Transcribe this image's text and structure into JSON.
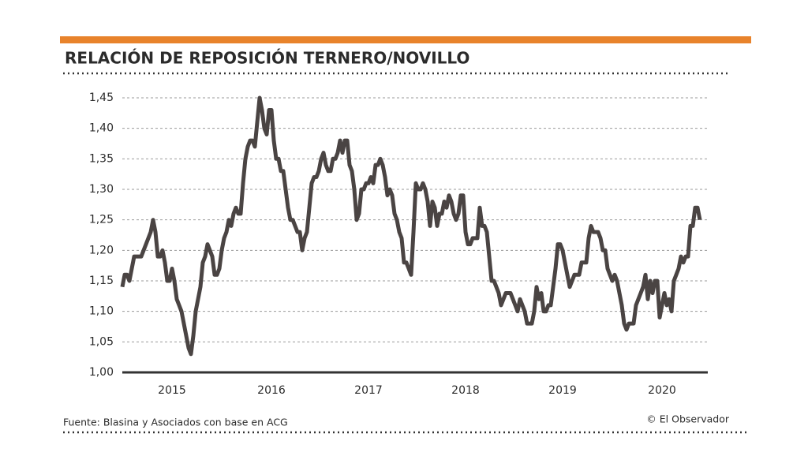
{
  "chart_data": {
    "type": "line",
    "title": "RELACIÓN DE REPOSICIÓN TERNERO/NOVILLO",
    "source": "Fuente: Blasina y Asociados con base en ACG",
    "credit": "© El Observador",
    "color": "#4a4443",
    "grid": true,
    "ylim": [
      1.0,
      1.45
    ],
    "yticks": [
      {
        "value": 1.0,
        "label": "1,00"
      },
      {
        "value": 1.05,
        "label": "1,05"
      },
      {
        "value": 1.1,
        "label": "1,10"
      },
      {
        "value": 1.15,
        "label": "1,15"
      },
      {
        "value": 1.2,
        "label": "1,20"
      },
      {
        "value": 1.25,
        "label": "1,25"
      },
      {
        "value": 1.3,
        "label": "1,30"
      },
      {
        "value": 1.35,
        "label": "1,35"
      },
      {
        "value": 1.4,
        "label": "1,40"
      },
      {
        "value": 1.45,
        "label": "1,45"
      }
    ],
    "categories": [
      null,
      null,
      null,
      null,
      null,
      null,
      null,
      null,
      null,
      null,
      null,
      null,
      null,
      null,
      null,
      null,
      null,
      null,
      null,
      null,
      null,
      "2015",
      null,
      null,
      null,
      null,
      null,
      null,
      null,
      null,
      null,
      null,
      null,
      null,
      null,
      null,
      null,
      null,
      null,
      null,
      null,
      null,
      null,
      null,
      null,
      null,
      null,
      null,
      null,
      null,
      null,
      null,
      null,
      null,
      null,
      null,
      null,
      null,
      null,
      null,
      null,
      null,
      null,
      "2016",
      null,
      null,
      null,
      null,
      null,
      null,
      null,
      null,
      null,
      null,
      null,
      null,
      null,
      null,
      null,
      null,
      null,
      null,
      null,
      null,
      null,
      null,
      null,
      null,
      null,
      null,
      null,
      null,
      null,
      null,
      null,
      null,
      null,
      null,
      null,
      null,
      null,
      null,
      null,
      null,
      "2017",
      null,
      null,
      null,
      null,
      null,
      null,
      null,
      null,
      null,
      null,
      null,
      null,
      null,
      null,
      null,
      null,
      null,
      null,
      null,
      null,
      null,
      null,
      null,
      null,
      null,
      null,
      null,
      null,
      null,
      null,
      null,
      null,
      null,
      null,
      null,
      null,
      null,
      null,
      null,
      null,
      "2018",
      null,
      null,
      null,
      null,
      null,
      null,
      null,
      null,
      null,
      null,
      null,
      null,
      null,
      null,
      null,
      null,
      null,
      null,
      null,
      null,
      null,
      null,
      null,
      null,
      null,
      null,
      null,
      null,
      null,
      null,
      null,
      null,
      null,
      null,
      null,
      null,
      null,
      null,
      null,
      null,
      "2019",
      null,
      null,
      null,
      null,
      null,
      null,
      null,
      null,
      null,
      null,
      null,
      null,
      null,
      null,
      null,
      null,
      null,
      null,
      null,
      null,
      null,
      null,
      null,
      null,
      null,
      null,
      null,
      null,
      null,
      null,
      null,
      null,
      null,
      null,
      null,
      null,
      null,
      null,
      null,
      null,
      null,
      "2020",
      null,
      null,
      null,
      null,
      null,
      null,
      null,
      null,
      null,
      null,
      null,
      null,
      null,
      null,
      null,
      null
    ],
    "values": [
      1.14,
      1.16,
      1.16,
      1.15,
      1.17,
      1.19,
      1.19,
      1.19,
      1.19,
      1.2,
      1.21,
      1.22,
      1.23,
      1.25,
      1.23,
      1.19,
      1.19,
      1.2,
      1.18,
      1.15,
      1.15,
      1.17,
      1.15,
      1.12,
      1.11,
      1.1,
      1.08,
      1.06,
      1.04,
      1.03,
      1.06,
      1.1,
      1.12,
      1.14,
      1.18,
      1.19,
      1.21,
      1.2,
      1.19,
      1.16,
      1.16,
      1.17,
      1.2,
      1.22,
      1.23,
      1.25,
      1.24,
      1.26,
      1.27,
      1.26,
      1.26,
      1.31,
      1.35,
      1.37,
      1.38,
      1.38,
      1.37,
      1.41,
      1.45,
      1.43,
      1.4,
      1.39,
      1.43,
      1.43,
      1.38,
      1.35,
      1.35,
      1.33,
      1.33,
      1.3,
      1.27,
      1.25,
      1.25,
      1.24,
      1.23,
      1.23,
      1.2,
      1.22,
      1.23,
      1.27,
      1.31,
      1.32,
      1.32,
      1.33,
      1.35,
      1.36,
      1.34,
      1.33,
      1.33,
      1.35,
      1.35,
      1.36,
      1.38,
      1.36,
      1.38,
      1.38,
      1.34,
      1.33,
      1.3,
      1.25,
      1.26,
      1.3,
      1.3,
      1.31,
      1.31,
      1.32,
      1.31,
      1.34,
      1.34,
      1.35,
      1.34,
      1.32,
      1.29,
      1.3,
      1.29,
      1.26,
      1.25,
      1.23,
      1.22,
      1.18,
      1.18,
      1.17,
      1.16,
      1.23,
      1.31,
      1.3,
      1.3,
      1.31,
      1.3,
      1.28,
      1.24,
      1.28,
      1.27,
      1.24,
      1.26,
      1.26,
      1.28,
      1.27,
      1.29,
      1.28,
      1.26,
      1.25,
      1.26,
      1.29,
      1.29,
      1.23,
      1.21,
      1.21,
      1.22,
      1.22,
      1.22,
      1.27,
      1.24,
      1.24,
      1.23,
      1.19,
      1.15,
      1.15,
      1.14,
      1.13,
      1.11,
      1.12,
      1.13,
      1.13,
      1.13,
      1.12,
      1.11,
      1.1,
      1.12,
      1.11,
      1.1,
      1.08,
      1.08,
      1.08,
      1.1,
      1.14,
      1.12,
      1.13,
      1.1,
      1.1,
      1.11,
      1.11,
      1.14,
      1.17,
      1.21,
      1.21,
      1.2,
      1.18,
      1.16,
      1.14,
      1.15,
      1.16,
      1.16,
      1.16,
      1.18,
      1.18,
      1.18,
      1.22,
      1.24,
      1.23,
      1.23,
      1.23,
      1.22,
      1.2,
      1.2,
      1.17,
      1.16,
      1.15,
      1.16,
      1.15,
      1.13,
      1.11,
      1.08,
      1.07,
      1.08,
      1.08,
      1.08,
      1.11,
      1.12,
      1.13,
      1.14,
      1.16,
      1.12,
      1.15,
      1.13,
      1.15,
      1.15,
      1.09,
      1.11,
      1.13,
      1.11,
      1.12,
      1.1,
      1.15,
      1.16,
      1.17,
      1.19,
      1.18,
      1.19,
      1.19,
      1.24,
      1.24,
      1.27,
      1.27,
      1.25
    ]
  }
}
